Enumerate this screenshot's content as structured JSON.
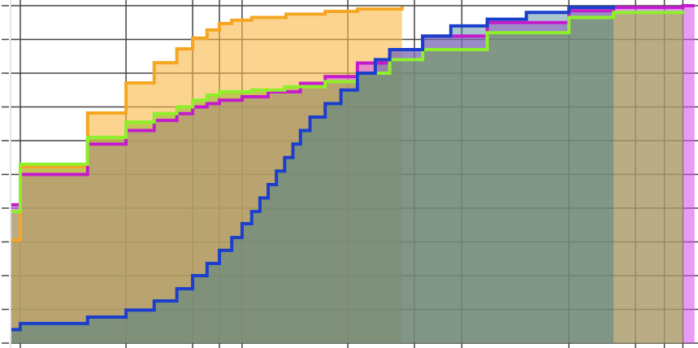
{
  "chart_data": {
    "type": "area",
    "step": true,
    "title": "",
    "xlabel": "",
    "ylabel": "",
    "xlim": [
      0,
      100
    ],
    "ylim": [
      0,
      1
    ],
    "x_scale": "unlabeled",
    "grid": true,
    "x_gridlines": [
      1.3,
      16.7,
      26.4,
      30.3,
      33.6,
      49.0,
      58.7,
      65.6,
      81.2,
      90.9,
      95.1,
      97.8
    ],
    "y_gridlines": [
      0,
      0.1,
      0.2,
      0.3,
      0.4,
      0.5,
      0.6,
      0.7,
      0.8,
      0.9,
      1.0
    ],
    "series": [
      {
        "color": "#f5a623",
        "fill": "rgba(248,185,70,0.6)",
        "x_end": 56.9,
        "points": [
          [
            0,
            0.305
          ],
          [
            1.3,
            0.523
          ],
          [
            11.1,
            0.682
          ],
          [
            16.7,
            0.771
          ],
          [
            20.8,
            0.831
          ],
          [
            24.1,
            0.872
          ],
          [
            26.4,
            0.904
          ],
          [
            28.5,
            0.928
          ],
          [
            30.3,
            0.947
          ],
          [
            32.1,
            0.957
          ],
          [
            35,
            0.965
          ],
          [
            40,
            0.975
          ],
          [
            45.7,
            0.983
          ],
          [
            50.4,
            0.99
          ],
          [
            56.9,
            0.998
          ]
        ]
      },
      {
        "color": "#c41ccc",
        "fill": "rgba(215,90,235,0.6)",
        "x_end": 99.5,
        "points": [
          [
            0,
            0.41
          ],
          [
            1.3,
            0.5
          ],
          [
            11.1,
            0.59
          ],
          [
            16.7,
            0.63
          ],
          [
            20.8,
            0.66
          ],
          [
            24.1,
            0.68
          ],
          [
            26.4,
            0.7
          ],
          [
            28.5,
            0.71
          ],
          [
            30.3,
            0.72
          ],
          [
            33.6,
            0.73
          ],
          [
            37.4,
            0.745
          ],
          [
            42.1,
            0.77
          ],
          [
            45.7,
            0.79
          ],
          [
            50.4,
            0.83
          ],
          [
            55.1,
            0.87
          ],
          [
            59.9,
            0.91
          ],
          [
            69.3,
            0.95
          ],
          [
            81.2,
            0.985
          ],
          [
            87.7,
            0.995
          ],
          [
            97.8,
            1.0
          ]
        ]
      },
      {
        "color": "#8ef02a",
        "fill": "rgba(150,185,40,0.55)",
        "x_end": 97.8,
        "points": [
          [
            0,
            0.39
          ],
          [
            1.3,
            0.53
          ],
          [
            11.1,
            0.61
          ],
          [
            16.7,
            0.655
          ],
          [
            20.8,
            0.68
          ],
          [
            24.1,
            0.7
          ],
          [
            26.4,
            0.72
          ],
          [
            28.5,
            0.735
          ],
          [
            30.3,
            0.745
          ],
          [
            35,
            0.75
          ],
          [
            39.8,
            0.76
          ],
          [
            45.7,
            0.775
          ],
          [
            50.4,
            0.8
          ],
          [
            55.1,
            0.84
          ],
          [
            59.9,
            0.87
          ],
          [
            69.3,
            0.92
          ],
          [
            81.2,
            0.965
          ],
          [
            87.7,
            0.98
          ],
          [
            97.8,
            0.985
          ]
        ]
      },
      {
        "color": "#1b3fcc",
        "fill": "rgba(50,120,140,0.42)",
        "x_end": 87.7,
        "points": [
          [
            0,
            0.04
          ],
          [
            1.3,
            0.058
          ],
          [
            11.1,
            0.077
          ],
          [
            16.7,
            0.098
          ],
          [
            20.8,
            0.125
          ],
          [
            24.1,
            0.161
          ],
          [
            26.4,
            0.2
          ],
          [
            28.5,
            0.236
          ],
          [
            30.3,
            0.275
          ],
          [
            32.1,
            0.313
          ],
          [
            33.6,
            0.354
          ],
          [
            35,
            0.39
          ],
          [
            36.2,
            0.43
          ],
          [
            37.4,
            0.47
          ],
          [
            38.6,
            0.51
          ],
          [
            39.8,
            0.55
          ],
          [
            41,
            0.59
          ],
          [
            42.1,
            0.63
          ],
          [
            43.5,
            0.67
          ],
          [
            45.7,
            0.71
          ],
          [
            48,
            0.75
          ],
          [
            50.4,
            0.8
          ],
          [
            53,
            0.84
          ],
          [
            55.1,
            0.87
          ],
          [
            59.9,
            0.91
          ],
          [
            64,
            0.94
          ],
          [
            69.3,
            0.96
          ],
          [
            75,
            0.98
          ],
          [
            81.2,
            0.995
          ],
          [
            87.7,
            1.0
          ]
        ]
      }
    ]
  }
}
